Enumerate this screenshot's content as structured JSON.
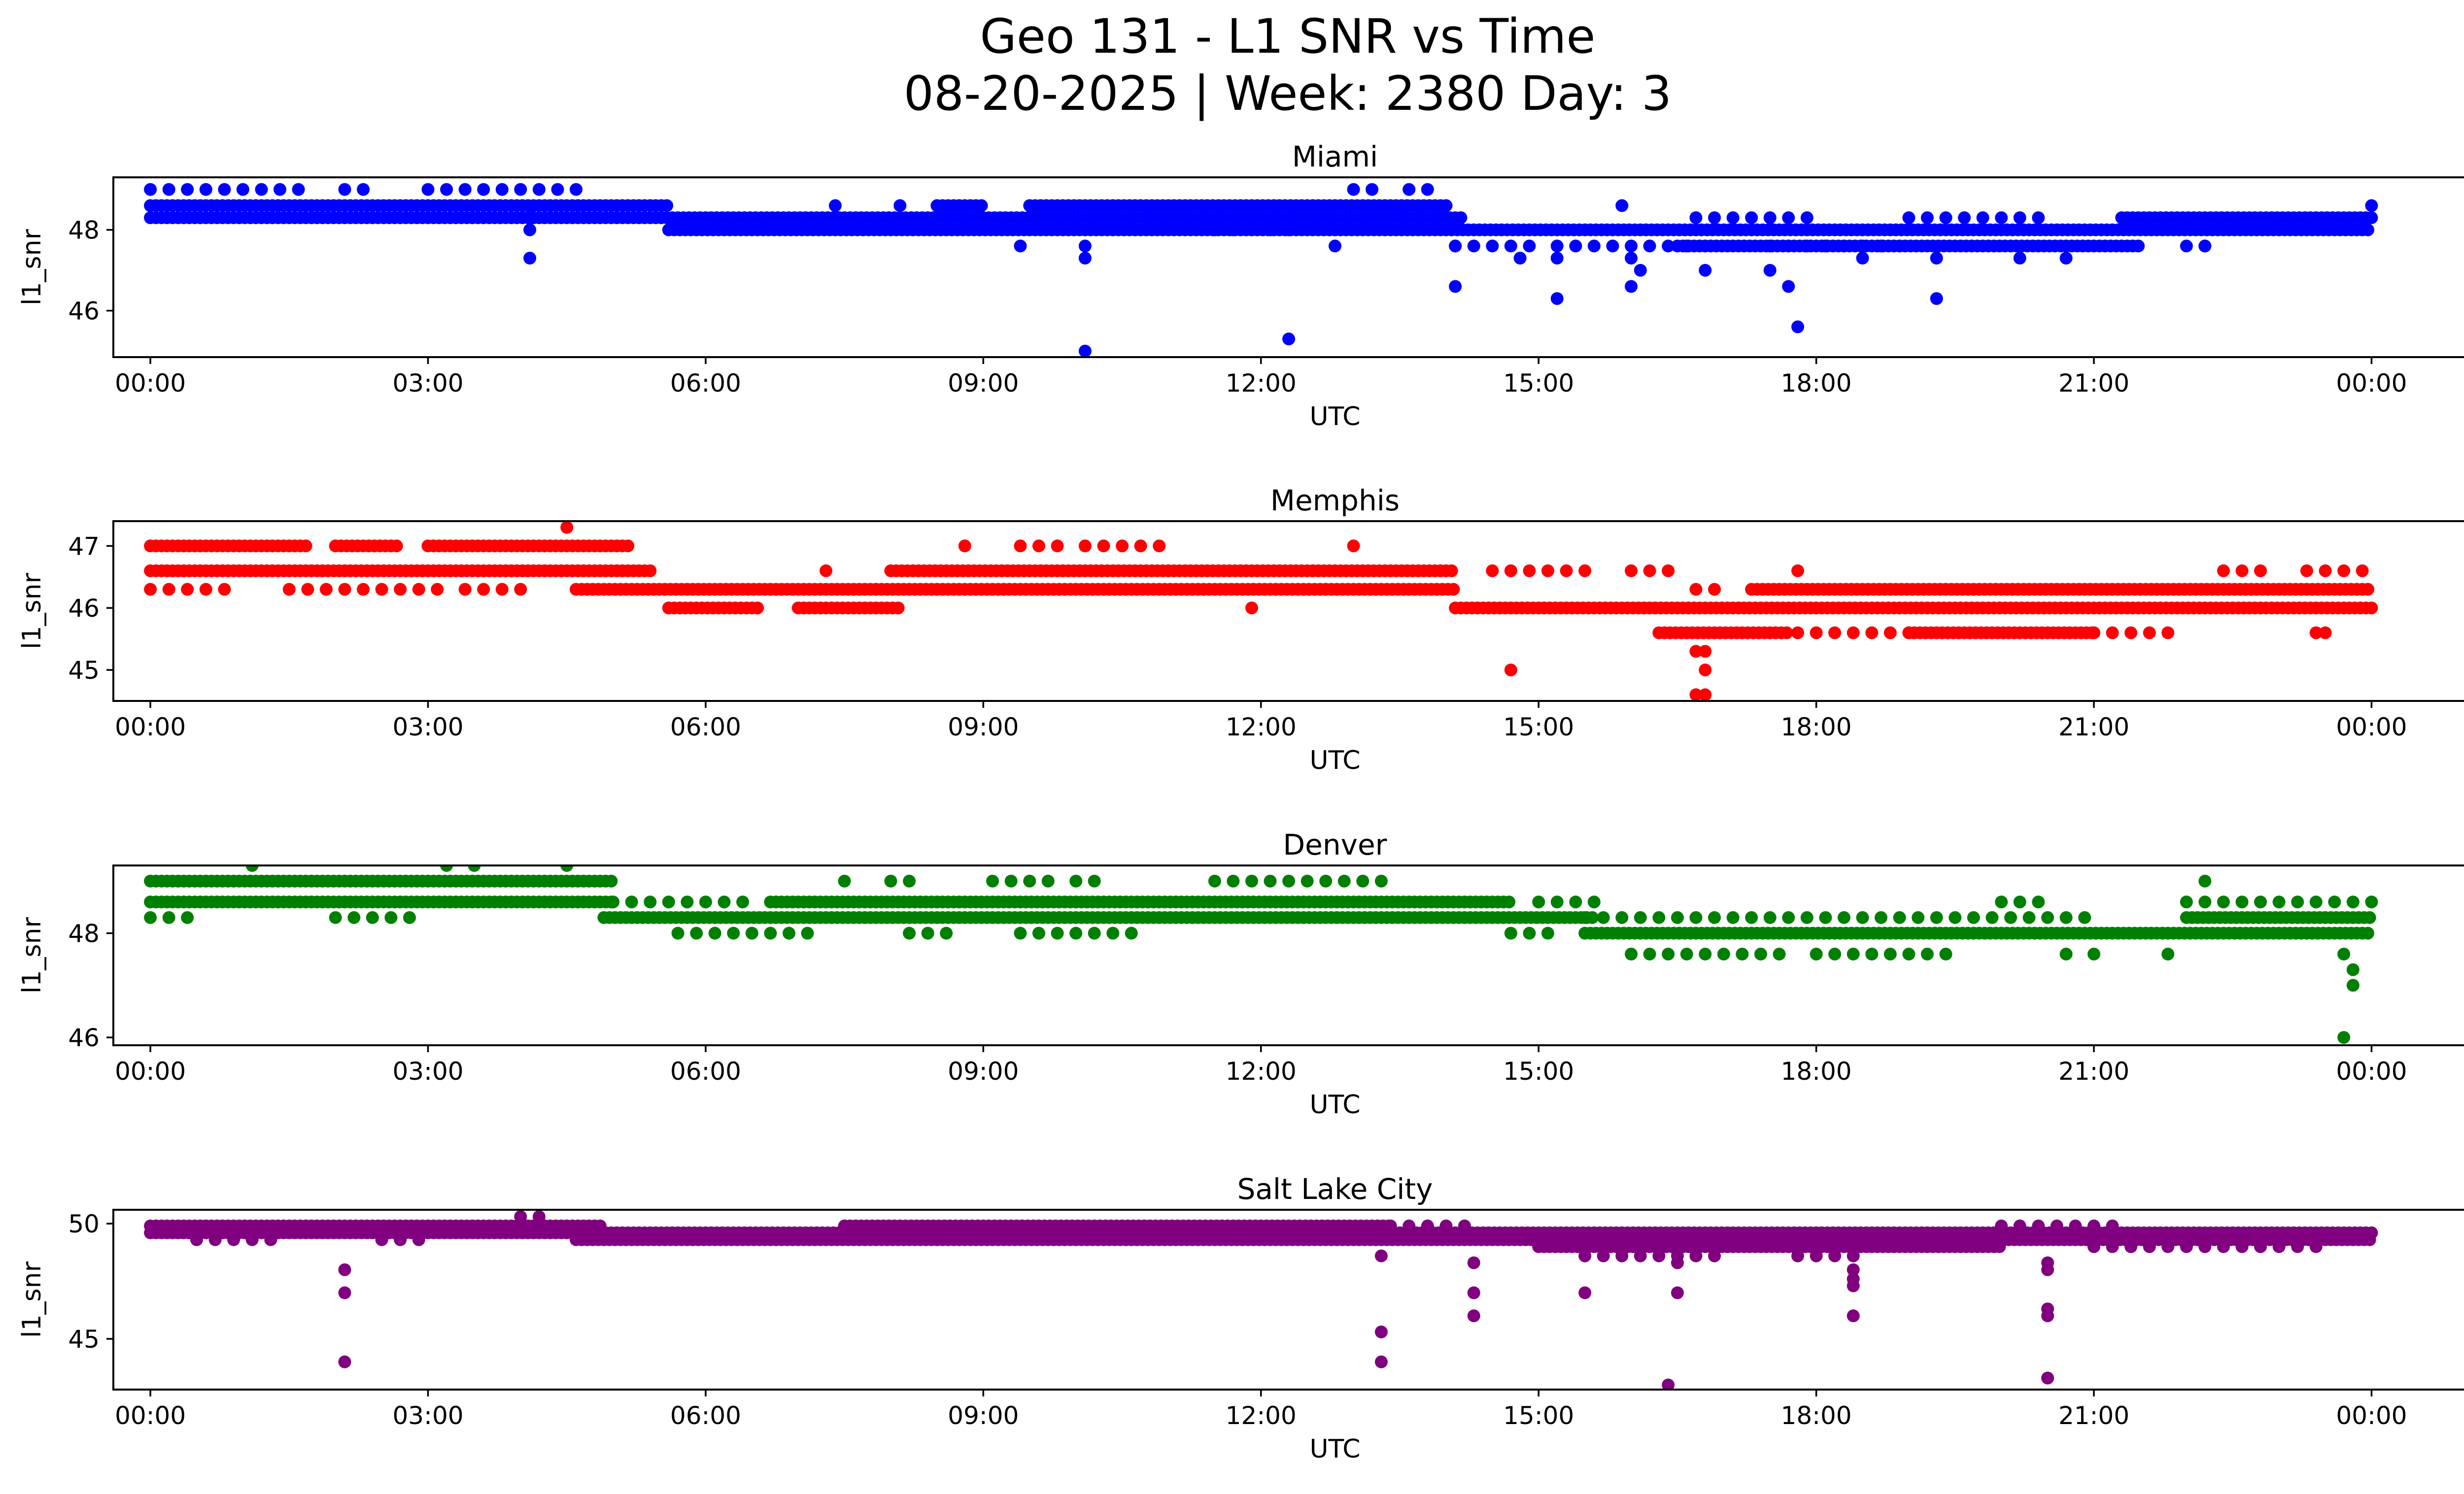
{
  "figure": {
    "title_line1": "Geo 131 - L1 SNR vs Time",
    "title_line2": "08-20-2025 | Week: 2380 Day: 3"
  },
  "chart_data": [
    {
      "type": "scatter",
      "title": "Miami",
      "xlabel": "UTC",
      "ylabel": "l1_snr",
      "color": "#0000ff",
      "xlim": [
        -0.4,
        26.0
      ],
      "ylim": [
        44.85,
        49.3
      ],
      "yticks": [
        46,
        48
      ],
      "ytick_labels": [
        "46",
        "48"
      ],
      "xticks": [
        0,
        3,
        6,
        9,
        12,
        15,
        18,
        21,
        24
      ],
      "xtick_labels": [
        "00:00",
        "03:00",
        "06:00",
        "09:00",
        "12:00",
        "15:00",
        "18:00",
        "21:00",
        "00:00"
      ],
      "bands": [
        {
          "y": 48.6,
          "segments": [
            [
              0,
              5.6
            ],
            [
              8.5,
              9.0
            ],
            [
              9.5,
              14.0
            ]
          ]
        },
        {
          "y": 48.3,
          "segments": [
            [
              0,
              14.2
            ],
            [
              21.3,
              24
            ]
          ]
        },
        {
          "y": 48.0,
          "segments": [
            [
              5.6,
              24
            ]
          ]
        },
        {
          "y": 47.6,
          "segments": [
            [
              16.5,
              21.5
            ]
          ]
        }
      ],
      "sparse_bands": [
        {
          "y": 49.0,
          "segments": [
            [
              0,
              1.7
            ],
            [
              2.1,
              2.3
            ],
            [
              3.0,
              4.6
            ],
            [
              13.0,
              13.2
            ],
            [
              13.6,
              13.8
            ]
          ]
        },
        {
          "y": 48.6,
          "segments": [
            [
              7.4,
              7.5
            ],
            [
              8.1,
              8.2
            ],
            [
              15.9,
              16.0
            ],
            [
              24.0,
              24.0
            ]
          ]
        },
        {
          "y": 48.3,
          "segments": [
            [
              16.7,
              18.0
            ],
            [
              19.0,
              20.4
            ]
          ]
        },
        {
          "y": 48.0,
          "segments": [
            [
              11.5,
              12.3
            ]
          ]
        },
        {
          "y": 47.6,
          "segments": [
            [
              14.1,
              14.9
            ],
            [
              15.2,
              15.8
            ],
            [
              16.0,
              16.8
            ],
            [
              17.5,
              19.0
            ],
            [
              22.0,
              22.3
            ]
          ]
        }
      ],
      "outliers": [
        [
          4.1,
          48.3
        ],
        [
          4.1,
          48.0
        ],
        [
          4.1,
          47.3
        ],
        [
          9.4,
          47.6
        ],
        [
          10.1,
          47.6
        ],
        [
          10.1,
          47.3
        ],
        [
          10.1,
          45.0
        ],
        [
          12.3,
          45.3
        ],
        [
          12.8,
          47.6
        ],
        [
          14.1,
          47.6
        ],
        [
          14.1,
          46.6
        ],
        [
          14.8,
          47.3
        ],
        [
          15.2,
          47.3
        ],
        [
          15.2,
          46.3
        ],
        [
          16.0,
          47.3
        ],
        [
          16.1,
          47.0
        ],
        [
          16.0,
          46.6
        ],
        [
          16.8,
          47.0
        ],
        [
          17.5,
          47.0
        ],
        [
          17.7,
          46.6
        ],
        [
          17.8,
          45.6
        ],
        [
          18.5,
          47.3
        ],
        [
          19.3,
          47.3
        ],
        [
          19.3,
          46.3
        ],
        [
          20.2,
          47.3
        ],
        [
          20.7,
          47.3
        ],
        [
          22.2,
          47.6
        ]
      ]
    },
    {
      "type": "scatter",
      "title": "Memphis",
      "xlabel": "UTC",
      "ylabel": "l1_snr",
      "color": "#ff0000",
      "xlim": [
        -0.4,
        26.0
      ],
      "ylim": [
        44.5,
        47.4
      ],
      "yticks": [
        45,
        46,
        47
      ],
      "ytick_labels": [
        "45",
        "46",
        "47"
      ],
      "xticks": [
        0,
        3,
        6,
        9,
        12,
        15,
        18,
        21,
        24
      ],
      "xtick_labels": [
        "00:00",
        "03:00",
        "06:00",
        "09:00",
        "12:00",
        "15:00",
        "18:00",
        "21:00",
        "00:00"
      ],
      "bands": [
        {
          "y": 47.0,
          "segments": [
            [
              0,
              1.7
            ],
            [
              2.0,
              2.7
            ],
            [
              3.0,
              5.2
            ]
          ]
        },
        {
          "y": 46.6,
          "segments": [
            [
              0,
              5.4
            ],
            [
              8.0,
              14.1
            ]
          ]
        },
        {
          "y": 46.3,
          "segments": [
            [
              4.6,
              14.1
            ],
            [
              17.3,
              24
            ]
          ]
        },
        {
          "y": 46.0,
          "segments": [
            [
              5.6,
              6.6
            ],
            [
              7.0,
              8.1
            ],
            [
              14.1,
              24
            ]
          ]
        },
        {
          "y": 45.6,
          "segments": [
            [
              16.3,
              17.7
            ],
            [
              19.0,
              21.0
            ]
          ]
        }
      ],
      "sparse_bands": [
        {
          "y": 47.0,
          "segments": [
            [
              8.8,
              8.9
            ],
            [
              9.4,
              9.9
            ],
            [
              10.1,
              11.0
            ],
            [
              13.0,
              13.1
            ]
          ]
        },
        {
          "y": 46.6,
          "segments": [
            [
              7.3,
              7.4
            ],
            [
              14.5,
              15.6
            ],
            [
              16.0,
              16.5
            ],
            [
              22.4,
              22.8
            ],
            [
              23.3,
              23.9
            ]
          ]
        },
        {
          "y": 46.3,
          "segments": [
            [
              0,
              0.8
            ],
            [
              1.5,
              3.2
            ],
            [
              3.4,
              4.0
            ],
            [
              16.7,
              17.0
            ]
          ]
        },
        {
          "y": 45.6,
          "segments": [
            [
              17.8,
              19.0
            ],
            [
              21.0,
              21.8
            ]
          ]
        }
      ],
      "outliers": [
        [
          4.5,
          47.3
        ],
        [
          11.9,
          46.0
        ],
        [
          14.7,
          45.0
        ],
        [
          16.8,
          45.3
        ],
        [
          16.8,
          45.0
        ],
        [
          16.8,
          44.6
        ],
        [
          16.7,
          45.3
        ],
        [
          16.7,
          44.6
        ],
        [
          17.8,
          46.6
        ],
        [
          23.4,
          45.6
        ],
        [
          23.5,
          45.6
        ]
      ]
    },
    {
      "type": "scatter",
      "title": "Denver",
      "xlabel": "UTC",
      "ylabel": "l1_snr",
      "color": "#008000",
      "xlim": [
        -0.4,
        26.0
      ],
      "ylim": [
        45.85,
        49.3
      ],
      "yticks": [
        46,
        48
      ],
      "ytick_labels": [
        "46",
        "48"
      ],
      "xticks": [
        0,
        3,
        6,
        9,
        12,
        15,
        18,
        21,
        24
      ],
      "xtick_labels": [
        "00:00",
        "03:00",
        "06:00",
        "09:00",
        "12:00",
        "15:00",
        "18:00",
        "21:00",
        "00:00"
      ],
      "bands": [
        {
          "y": 49.0,
          "segments": [
            [
              0,
              5.0
            ]
          ]
        },
        {
          "y": 48.6,
          "segments": [
            [
              0,
              5.0
            ],
            [
              6.7,
              14.7
            ]
          ]
        },
        {
          "y": 48.3,
          "segments": [
            [
              4.9,
              15.6
            ],
            [
              22.0,
              24
            ]
          ]
        },
        {
          "y": 48.0,
          "segments": [
            [
              15.5,
              24
            ]
          ]
        }
      ],
      "sparse_bands": [
        {
          "y": 49.0,
          "segments": [
            [
              7.5,
              7.6
            ],
            [
              8.0,
              8.3
            ],
            [
              9.1,
              9.8
            ],
            [
              10.0,
              10.3
            ],
            [
              11.5,
              13.4
            ]
          ]
        },
        {
          "y": 48.6,
          "segments": [
            [
              5.0,
              6.5
            ],
            [
              15.0,
              15.7
            ],
            [
              20.0,
              20.5
            ],
            [
              22.0,
              24.0
            ]
          ]
        },
        {
          "y": 48.3,
          "segments": [
            [
              0,
              0.4
            ],
            [
              2.0,
              2.9
            ],
            [
              15.5,
              21.0
            ]
          ]
        },
        {
          "y": 48.0,
          "segments": [
            [
              5.7,
              7.2
            ],
            [
              8.2,
              8.6
            ],
            [
              9.4,
              10.6
            ],
            [
              14.7,
              15.2
            ]
          ]
        },
        {
          "y": 47.6,
          "segments": [
            [
              16.0,
              17.7
            ],
            [
              18.0,
              19.5
            ]
          ]
        }
      ],
      "outliers": [
        [
          1.1,
          49.3
        ],
        [
          3.2,
          49.3
        ],
        [
          3.5,
          49.3
        ],
        [
          4.5,
          49.3
        ],
        [
          20.7,
          47.6
        ],
        [
          21.0,
          47.6
        ],
        [
          21.8,
          47.6
        ],
        [
          22.2,
          49.0
        ],
        [
          23.7,
          47.6
        ],
        [
          23.8,
          47.3
        ],
        [
          23.8,
          47.0
        ],
        [
          23.7,
          46.0
        ]
      ]
    },
    {
      "type": "scatter",
      "title": "Salt Lake City",
      "xlabel": "UTC",
      "ylabel": "l1_snr",
      "color": "#800080",
      "xlim": [
        -0.4,
        26.0
      ],
      "ylim": [
        42.8,
        50.6
      ],
      "yticks": [
        45,
        50
      ],
      "ytick_labels": [
        "45",
        "50"
      ],
      "xticks": [
        0,
        3,
        6,
        9,
        12,
        15,
        18,
        21,
        24
      ],
      "xtick_labels": [
        "00:00",
        "03:00",
        "06:00",
        "09:00",
        "12:00",
        "15:00",
        "18:00",
        "21:00",
        "00:00"
      ],
      "bands": [
        {
          "y": 49.9,
          "segments": [
            [
              0,
              4.9
            ],
            [
              7.5,
              13.4
            ]
          ]
        },
        {
          "y": 49.6,
          "segments": [
            [
              0,
              24
            ]
          ]
        },
        {
          "y": 49.3,
          "segments": [
            [
              4.6,
              24
            ]
          ]
        },
        {
          "y": 49.0,
          "segments": [
            [
              15.0,
              20.0
            ]
          ]
        }
      ],
      "sparse_bands": [
        {
          "y": 49.9,
          "segments": [
            [
              13.4,
              14.3
            ],
            [
              20.0,
              21.3
            ]
          ]
        },
        {
          "y": 49.3,
          "segments": [
            [
              0.5,
              1.4
            ],
            [
              2.5,
              3.0
            ]
          ]
        },
        {
          "y": 48.6,
          "segments": [
            [
              15.5,
              17.0
            ],
            [
              17.8,
              18.4
            ]
          ]
        },
        {
          "y": 49.0,
          "segments": [
            [
              21.0,
              23.5
            ]
          ]
        }
      ],
      "outliers": [
        [
          4.0,
          50.3
        ],
        [
          4.2,
          50.3
        ],
        [
          2.1,
          48.0
        ],
        [
          2.1,
          47.0
        ],
        [
          2.1,
          44.0
        ],
        [
          13.3,
          48.6
        ],
        [
          13.3,
          45.3
        ],
        [
          13.3,
          44.0
        ],
        [
          14.3,
          48.3
        ],
        [
          14.3,
          47.0
        ],
        [
          14.3,
          46.0
        ],
        [
          15.5,
          47.0
        ],
        [
          16.5,
          48.3
        ],
        [
          16.5,
          47.0
        ],
        [
          16.4,
          43.0
        ],
        [
          18.4,
          48.0
        ],
        [
          18.4,
          47.6
        ],
        [
          18.4,
          47.3
        ],
        [
          18.4,
          46.0
        ],
        [
          20.5,
          48.3
        ],
        [
          20.5,
          48.0
        ],
        [
          20.5,
          46.3
        ],
        [
          20.5,
          46.0
        ],
        [
          20.5,
          43.3
        ]
      ]
    }
  ]
}
